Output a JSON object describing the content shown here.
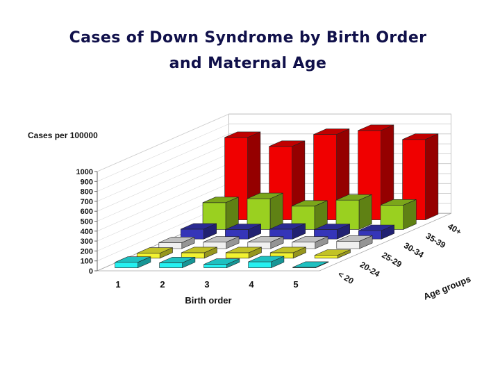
{
  "chart_data": {
    "type": "bar",
    "subtype": "3d-grouped",
    "title": [
      "Cases of Down Syndrome by Birth Order",
      "and Maternal Age"
    ],
    "ylabel": "Cases per 100000",
    "xlabel": "Birth order",
    "zlabel": "Age groups",
    "ylim": [
      0,
      1000
    ],
    "yticks": [
      "0",
      "100",
      "200",
      "300",
      "400",
      "500",
      "600",
      "700",
      "800",
      "900",
      "1000"
    ],
    "categories": [
      "1",
      "2",
      "3",
      "4",
      "5"
    ],
    "series": [
      {
        "name": "< 20",
        "color": "#25f0f0",
        "values": [
          55,
          50,
          35,
          60,
          5
        ]
      },
      {
        "name": "20-24",
        "color": "#f2f230",
        "values": [
          50,
          55,
          55,
          55,
          30
        ]
      },
      {
        "name": "25-29",
        "color": "#f0f0f0",
        "values": [
          60,
          65,
          65,
          65,
          75
        ]
      },
      {
        "name": "30-34",
        "color": "#3535b8",
        "values": [
          100,
          95,
          100,
          95,
          85
        ]
      },
      {
        "name": "35-39",
        "color": "#9ad020",
        "values": [
          270,
          310,
          235,
          295,
          245
        ]
      },
      {
        "name": "40+",
        "color": "#f00000",
        "values": [
          830,
          740,
          860,
          900,
          810
        ]
      }
    ]
  }
}
